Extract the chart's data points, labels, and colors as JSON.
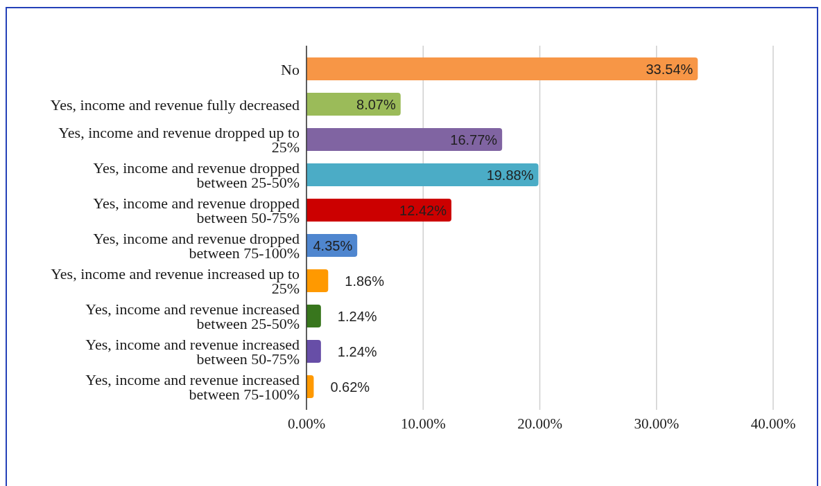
{
  "chart_data": {
    "type": "bar",
    "orientation": "horizontal",
    "categories": [
      "No",
      "Yes, income and revenue fully decreased",
      "Yes, income and revenue dropped up to 25%",
      "Yes, income and revenue dropped between 25-50%",
      "Yes, income and revenue dropped between 50-75%",
      "Yes, income and revenue dropped between 75-100%",
      "Yes, income and revenue increased up to 25%",
      "Yes, income and revenue increased between 25-50%",
      "Yes, income and revenue increased between 50-75%",
      "Yes, income and revenue increased between 75-100%"
    ],
    "values": [
      33.54,
      8.07,
      16.77,
      19.88,
      12.42,
      4.35,
      1.86,
      1.24,
      1.24,
      0.62
    ],
    "colors": [
      "#f79646",
      "#9bbb59",
      "#8064a2",
      "#4bacc6",
      "#cc0000",
      "#4f86cf",
      "#ff9900",
      "#38761d",
      "#674ea7",
      "#ff9900"
    ],
    "value_labels": [
      "33.54%",
      "8.07%",
      "16.77%",
      "19.88%",
      "12.42%",
      "4.35%",
      "1.86%",
      "1.24%",
      "1.24%",
      "0.62%"
    ],
    "xlim": [
      0,
      40
    ],
    "xticks": [
      {
        "value": 0,
        "label": "0.00%"
      },
      {
        "value": 10,
        "label": "10.00%"
      },
      {
        "value": 20,
        "label": "20.00%"
      },
      {
        "value": 30,
        "label": "30.00%"
      },
      {
        "value": 40,
        "label": "40.00%"
      }
    ],
    "grid": "x"
  }
}
